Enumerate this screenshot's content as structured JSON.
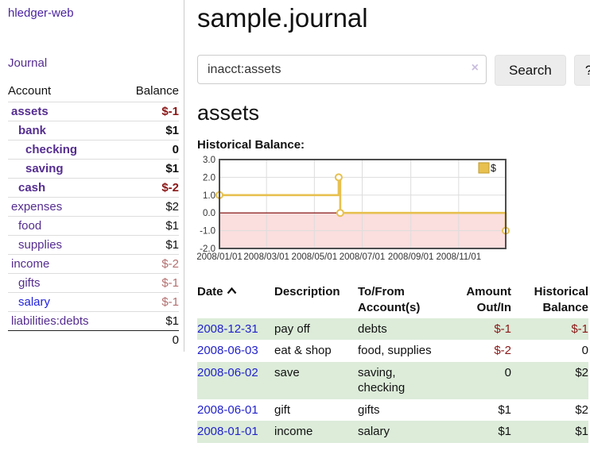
{
  "app": {
    "title": "hledger-web",
    "nav_journal": "Journal"
  },
  "sidebar": {
    "col_account": "Account",
    "col_balance": "Balance",
    "accounts": [
      {
        "name": "assets",
        "balance": "$-1",
        "level": 1,
        "bold": true
      },
      {
        "name": "bank",
        "balance": "$1",
        "level": 2,
        "bold": true
      },
      {
        "name": "checking",
        "balance": "0",
        "level": 3,
        "bold": true
      },
      {
        "name": "saving",
        "balance": "$1",
        "level": 3,
        "bold": true
      },
      {
        "name": "cash",
        "balance": "$-2",
        "level": 2,
        "bold": true
      },
      {
        "name": "expenses",
        "balance": "$2",
        "level": 1,
        "bold": false
      },
      {
        "name": "food",
        "balance": "$1",
        "level": 2,
        "bold": false
      },
      {
        "name": "supplies",
        "balance": "$1",
        "level": 2,
        "bold": false
      },
      {
        "name": "income",
        "balance": "$-2",
        "level": 1,
        "bold": false
      },
      {
        "name": "gifts",
        "balance": "$-1",
        "level": 2,
        "bold": false
      },
      {
        "name": "salary",
        "balance": "$-1",
        "level": 2,
        "bold": false,
        "link_style": "blue"
      },
      {
        "name": "liabilities:debts",
        "balance": "$1",
        "level": 1,
        "bold": false
      }
    ],
    "total": "0"
  },
  "header": {
    "title": "sample.journal"
  },
  "search": {
    "value": "inacct:assets",
    "clear_label": "×",
    "button_label": "Search",
    "help_label": "?"
  },
  "account_page": {
    "title": "assets",
    "chart_label": "Historical Balance:"
  },
  "chart_data": {
    "type": "line",
    "step": true,
    "title": "Historical Balance",
    "x_range": [
      "2008-01-01",
      "2008-12-31"
    ],
    "ylim": [
      -2,
      3
    ],
    "y_ticks": [
      3.0,
      2.0,
      1.0,
      0.0,
      -1.0,
      -2.0
    ],
    "x_tick_labels": [
      "2008/01/01",
      "2008/03/01",
      "2008/05/01",
      "2008/07/01",
      "2008/09/01",
      "2008/11/01"
    ],
    "grid": true,
    "legend_position": "top-right",
    "series": [
      {
        "name": "$",
        "points": [
          {
            "date": "2008-01-01",
            "value": 1
          },
          {
            "date": "2008-06-01",
            "value": 2
          },
          {
            "date": "2008-06-03",
            "value": 0
          },
          {
            "date": "2008-12-31",
            "value": -1
          }
        ]
      }
    ],
    "colors": {
      "line": "#e7c04f",
      "marker_fill": "#ffffff",
      "negative_region": "#fbdede",
      "zero_line": "#7a0000",
      "grid": "#dddddd",
      "border": "#4d4d4d",
      "legend_fill": "#e7c04f",
      "legend_border": "#bf9b30",
      "tick_text": "#333333"
    }
  },
  "register": {
    "columns": {
      "date": "Date",
      "description": "Description",
      "tofrom": "To/From Account(s)",
      "amount": "Amount Out/In",
      "balance": "Historical Balance"
    },
    "sort": "date-ascending",
    "rows": [
      {
        "date": "2008-12-31",
        "description": "pay off",
        "accounts": "debts",
        "amount": "$-1",
        "balance": "$-1"
      },
      {
        "date": "2008-06-03",
        "description": "eat & shop",
        "accounts": "food, supplies",
        "amount": "$-2",
        "balance": "0"
      },
      {
        "date": "2008-06-02",
        "description": "save",
        "accounts": "saving, checking",
        "amount": "0",
        "balance": "$2"
      },
      {
        "date": "2008-06-01",
        "description": "gift",
        "accounts": "gifts",
        "amount": "$1",
        "balance": "$2"
      },
      {
        "date": "2008-01-01",
        "description": "income",
        "accounts": "salary",
        "amount": "$1",
        "balance": "$1"
      }
    ]
  },
  "colors": {
    "link_purple": "#552d90",
    "link_blue": "#2222cc",
    "negative": "#8b1717",
    "negative_muted": "#b36f6f",
    "row_shade": "#dcecd9",
    "divider": "#cccccc"
  }
}
